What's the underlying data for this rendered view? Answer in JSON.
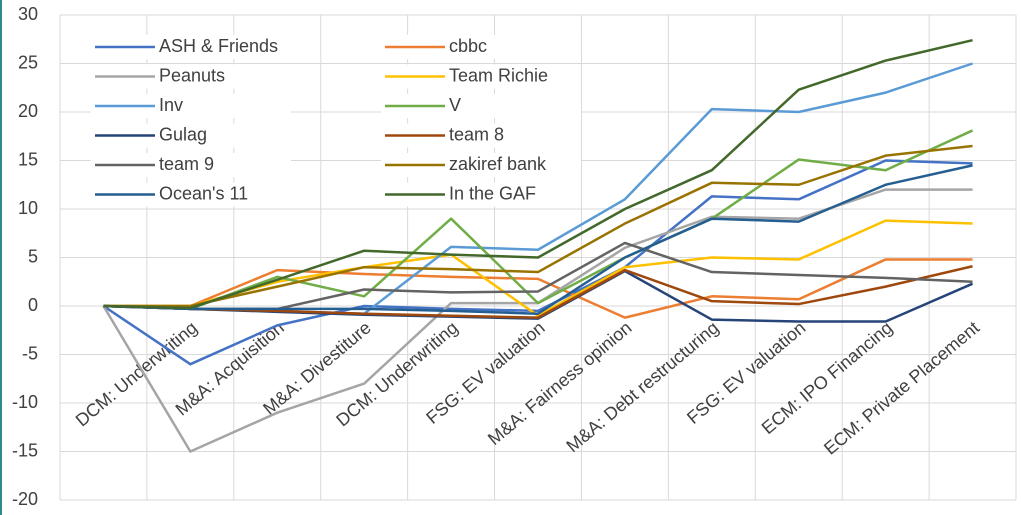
{
  "chart_data": {
    "type": "line",
    "categories": [
      null,
      "DCM: Underwriting",
      "M&A: Acquisition",
      "M&A: Divestiture",
      "DCM: Underwriting",
      "FSG: EV valuation",
      "M&A: Fairness opinion",
      "M&A: Debt restructuring",
      "FSG: EV valuation",
      "ECM: IPO Financing",
      "ECM: Private Placement"
    ],
    "series": [
      {
        "name": "ASH & Friends",
        "color": "#4472c4",
        "values": [
          0,
          -6,
          -2,
          0,
          -0.3,
          -0.5,
          4,
          11.3,
          11,
          15,
          14.7
        ]
      },
      {
        "name": "cbbc",
        "color": "#ed7d31",
        "values": [
          0,
          0,
          3.7,
          3.3,
          3,
          2.8,
          -1.2,
          1,
          0.7,
          4.8,
          4.8
        ]
      },
      {
        "name": "Peanuts",
        "color": "#a5a5a5",
        "values": [
          0,
          -15,
          -11,
          -8,
          0.3,
          0.3,
          6,
          9.2,
          9,
          12,
          12
        ]
      },
      {
        "name": "Team Richie",
        "color": "#ffc000",
        "values": [
          0,
          0,
          2.5,
          4,
          5.3,
          -1,
          4,
          5,
          4.8,
          8.8,
          8.5
        ]
      },
      {
        "name": "Inv",
        "color": "#5b9bd5",
        "values": [
          0,
          -0.3,
          -0.5,
          -0.8,
          6.1,
          5.8,
          11,
          20.3,
          20,
          22,
          25
        ]
      },
      {
        "name": "V",
        "color": "#70ad47",
        "values": [
          0,
          -0.3,
          3,
          1,
          9,
          0.3,
          5,
          9,
          15.1,
          14,
          18.1
        ]
      },
      {
        "name": "Gulag",
        "color": "#264478",
        "values": [
          0,
          -0.3,
          -0.6,
          -0.9,
          -1.1,
          -1.3,
          3.6,
          -1.4,
          -1.6,
          -1.6,
          2.3
        ]
      },
      {
        "name": "team 8",
        "color": "#9e480e",
        "values": [
          0,
          -0.3,
          -0.5,
          -0.8,
          -1,
          -1.2,
          3.7,
          0.5,
          0.2,
          2,
          4.1
        ]
      },
      {
        "name": "team 9",
        "color": "#636363",
        "values": [
          0,
          -0.3,
          -0.3,
          1.7,
          1.4,
          1.5,
          6.5,
          3.5,
          3.2,
          2.9,
          2.5
        ]
      },
      {
        "name": "zakiref bank",
        "color": "#997300",
        "values": [
          0,
          0,
          2,
          4,
          3.8,
          3.5,
          8.5,
          12.7,
          12.5,
          15.5,
          16.5
        ]
      },
      {
        "name": "Ocean's 11",
        "color": "#255e91",
        "values": [
          0,
          -0.3,
          -0.3,
          -0.3,
          -0.5,
          -0.8,
          5,
          9,
          8.7,
          12.5,
          14.5
        ]
      },
      {
        "name": "In the GAF",
        "color": "#43682b",
        "values": [
          0,
          -0.2,
          2.7,
          5.7,
          5.3,
          5,
          10,
          14,
          22.3,
          25.3,
          27.4
        ]
      }
    ],
    "ylim": [
      -20,
      30
    ],
    "yticks": [
      -20,
      -15,
      -10,
      -5,
      0,
      5,
      10,
      15,
      20,
      25,
      30
    ],
    "grid": true
  }
}
